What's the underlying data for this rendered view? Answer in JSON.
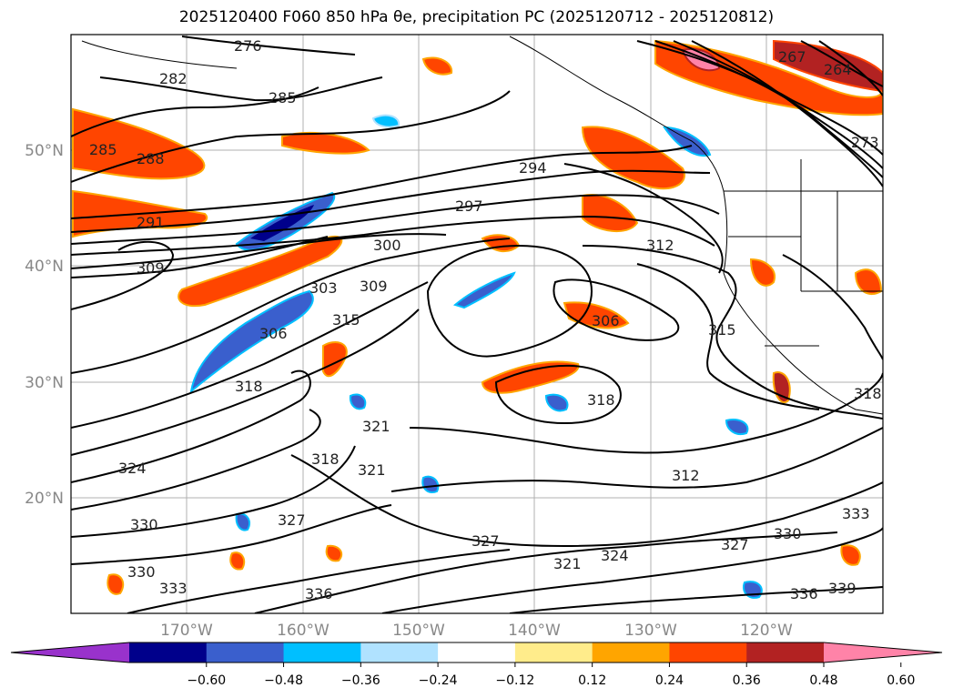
{
  "title": "2025120400 F060 850 hPa θe, precipitation PC (2025120712 - 2025120812)",
  "map": {
    "longitude_labels": [
      "170°W",
      "160°W",
      "150°W",
      "140°W",
      "130°W",
      "120°W"
    ],
    "latitude_labels": [
      "50°N",
      "40°N",
      "30°N",
      "20°N"
    ],
    "theta_e_contour_labels": [
      "276",
      "282",
      "285",
      "288",
      "285",
      "291",
      "294",
      "297",
      "300",
      "303",
      "306",
      "309",
      "309",
      "312",
      "315",
      "315",
      "318",
      "318",
      "321",
      "321",
      "318",
      "324",
      "327",
      "327",
      "330",
      "330",
      "333",
      "336",
      "336",
      "339",
      "264",
      "267",
      "273",
      "306",
      "312",
      "318",
      "321",
      "324",
      "327",
      "330",
      "333"
    ]
  },
  "colorbar": {
    "ticks": [
      "−0.60",
      "−0.48",
      "−0.36",
      "−0.24",
      "−0.12",
      "0.12",
      "0.24",
      "0.36",
      "0.48",
      "0.60"
    ],
    "colors": [
      "#9932CC",
      "#00008B",
      "#3A5FCD",
      "#00BFFF",
      "#B0E2FF",
      "#FFFFFF",
      "#FFEC8B",
      "#FFA500",
      "#FF4500",
      "#B22222",
      "#FF83A8"
    ]
  }
}
